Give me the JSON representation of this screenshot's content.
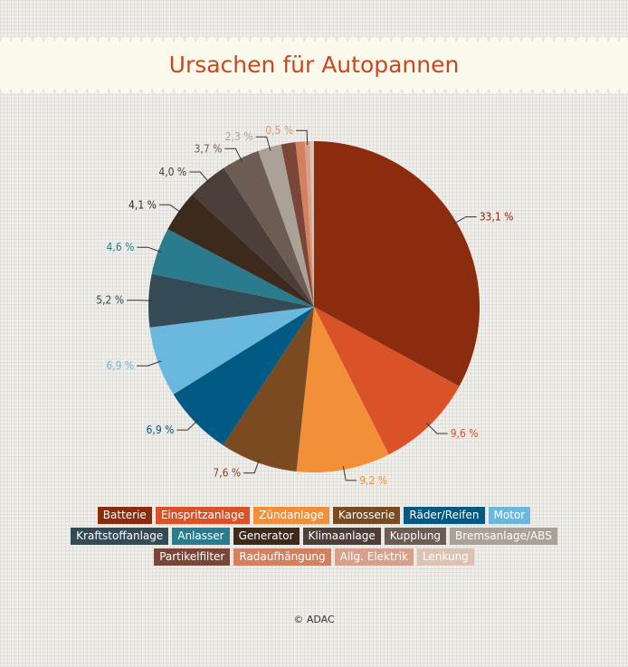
{
  "chart_data": {
    "type": "pie",
    "title": "Ursachen für Autopannen",
    "source": "© ADAC",
    "start_angle_deg": 0,
    "direction": "clockwise",
    "slices": [
      {
        "name": "Batterie",
        "value": 33.1,
        "label": "33,1 %",
        "color": "#8b2c0e",
        "label_color": "#8b2c0e"
      },
      {
        "name": "Einspritzanlage",
        "value": 9.6,
        "label": "9,6 %",
        "color": "#da5228",
        "label_color": "#da5228"
      },
      {
        "name": "Zündanlage",
        "value": 9.2,
        "label": "9,2 %",
        "color": "#f38f38",
        "label_color": "#f38f38"
      },
      {
        "name": "Karosserie",
        "value": 7.6,
        "label": "7,6 %",
        "color": "#7a4a21",
        "label_color": "#7a4a21"
      },
      {
        "name": "Räder/Reifen",
        "value": 6.9,
        "label": "6,9 %",
        "color": "#005a83",
        "label_color": "#005a83"
      },
      {
        "name": "Motor",
        "value": 6.9,
        "label": "6,9 %",
        "color": "#6bb8df",
        "label_color": "#6bb8df"
      },
      {
        "name": "Kraftstoffanlage",
        "value": 5.2,
        "label": "5,2 %",
        "color": "#344a54",
        "label_color": "#344a54"
      },
      {
        "name": "Anlasser",
        "value": 4.6,
        "label": "4,6 %",
        "color": "#2b7b8e",
        "label_color": "#2b7b8e"
      },
      {
        "name": "Generator",
        "value": 4.1,
        "label": "4,1 %",
        "color": "#3c2b1c",
        "label_color": "#3c2b1c"
      },
      {
        "name": "Klimaanlage",
        "value": 4.0,
        "label": "4,0 %",
        "color": "#4c3f39",
        "label_color": "#4c3f39"
      },
      {
        "name": "Kupplung",
        "value": 3.7,
        "label": "3,7 %",
        "color": "#6c5c53",
        "label_color": "#6c5c53"
      },
      {
        "name": "Bremsanlage/ABS",
        "value": 2.3,
        "label": "2,3 %",
        "color": "#aba297",
        "label_color": "#aba297"
      },
      {
        "name": "Partikelfilter",
        "value": 1.4,
        "label": "",
        "color": "#7b4637",
        "label_color": "#7b4637"
      },
      {
        "name": "Radaufhängung",
        "value": 0.9,
        "label": "",
        "color": "#d2805d",
        "label_color": "#d2805d"
      },
      {
        "name": "Allg. Elektrik",
        "value": 0.5,
        "label": "0,5 %",
        "color": "#d8a08c",
        "label_color": "#e09870"
      },
      {
        "name": "Lenkung",
        "value": 0.4,
        "label": "",
        "color": "#dcc2b0",
        "label_color": "#dcc2b0"
      }
    ]
  },
  "legend_rows": [
    [
      0,
      1,
      2,
      3,
      4,
      5
    ],
    [
      6,
      7,
      8,
      9,
      10,
      11
    ],
    [
      12,
      13,
      14,
      15
    ]
  ]
}
